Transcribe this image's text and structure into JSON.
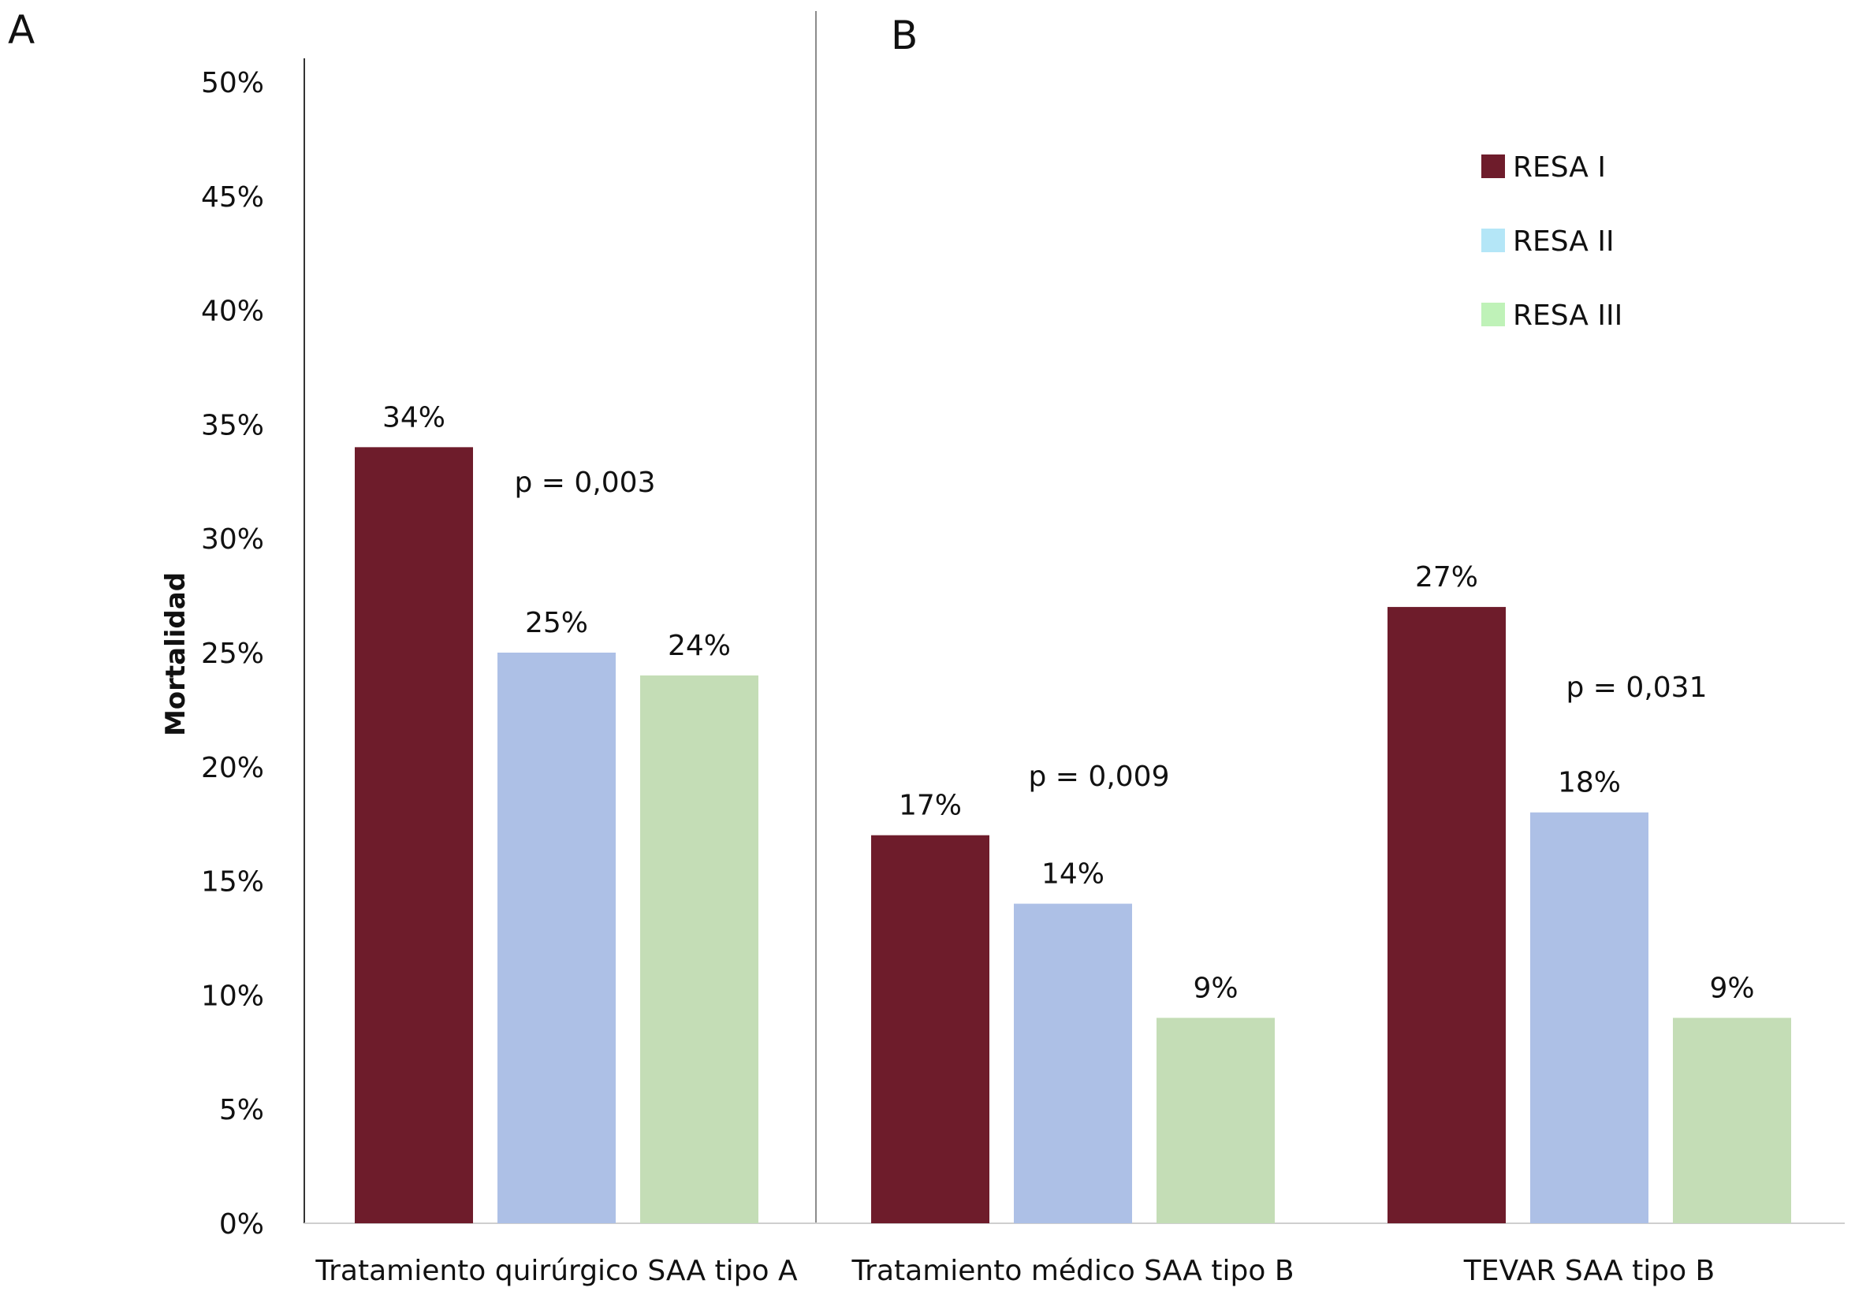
{
  "panels": {
    "a_label": "A",
    "b_label": "B"
  },
  "chart_data": {
    "type": "bar",
    "title": "",
    "xlabel": "",
    "ylabel": "Mortalidad",
    "ylim": [
      0,
      50
    ],
    "y_ticks": [
      "0%",
      "5%",
      "10%",
      "15%",
      "20%",
      "25%",
      "30%",
      "35%",
      "40%",
      "45%",
      "50%"
    ],
    "grid": false,
    "legend_position": "top-right",
    "categories": [
      "Tratamiento quirúrgico SAA tipo A",
      "Tratamiento médico SAA tipo B",
      "TEVAR SAA tipo B"
    ],
    "series": [
      {
        "name": "RESA I",
        "color": "#6e1c2b",
        "values": [
          34,
          17,
          27
        ],
        "labels": [
          "34%",
          "17%",
          "27%"
        ]
      },
      {
        "name": "RESA II",
        "color": "#adc0e6",
        "values": [
          25,
          14,
          18
        ],
        "labels": [
          "25%",
          "14%",
          "18%"
        ]
      },
      {
        "name": "RESA III",
        "color": "#c4ddb6",
        "values": [
          24,
          9,
          9
        ],
        "labels": [
          "24%",
          "9%",
          "9%"
        ]
      }
    ],
    "legend_swatch_colors": [
      "#6e1c2b",
      "#b4e6f7",
      "#bff2b8"
    ],
    "annotations": [
      "p = 0,003",
      "p = 0,009",
      "p = 0,031"
    ]
  }
}
